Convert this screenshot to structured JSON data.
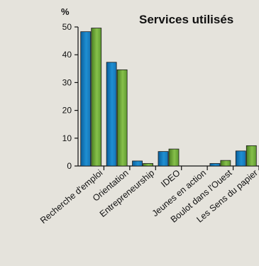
{
  "chart_data": {
    "type": "bar",
    "title": "Services utilisés",
    "ylabel": "%",
    "ylim": [
      0,
      50
    ],
    "yticks": [
      0,
      10,
      20,
      30,
      40,
      50
    ],
    "categories": [
      "Recherche d'emploi",
      "Orientation",
      "Entrepreneurship",
      "IDEO",
      "Jeunes en action",
      "Boulot dans l'Ouest",
      "Les Sens du papier"
    ],
    "series": [
      {
        "values": [
          48.3,
          37.3,
          1.8,
          5.2,
          0,
          0.9,
          5.4
        ],
        "color": "#1f7fc0"
      },
      {
        "values": [
          49.6,
          34.6,
          0.9,
          6.1,
          0,
          2.0,
          7.3
        ],
        "color": "#6fa83a"
      }
    ],
    "grid": false,
    "legend": "none"
  }
}
